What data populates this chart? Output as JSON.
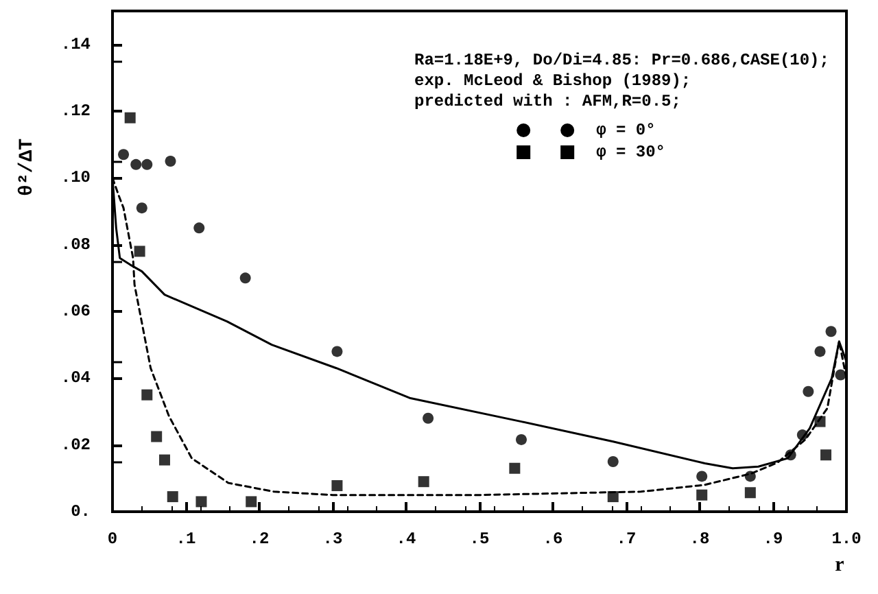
{
  "chart_data": {
    "type": "line",
    "xlabel": "r",
    "ylabel": "θ²/ΔT",
    "annotations": [
      "Ra=1.18E+9, Do/Di=4.85: Pr=0.686,CASE(10);",
      "exp. McLeod & Bishop (1989);",
      "predicted with : AFM,R=0.5;"
    ],
    "xlim": [
      0,
      1
    ],
    "ylim": [
      0,
      0.15
    ],
    "xticks": [
      {
        "value": 0,
        "label": "0"
      },
      {
        "value": 0.1,
        "label": ".1"
      },
      {
        "value": 0.2,
        "label": ".2"
      },
      {
        "value": 0.3,
        "label": ".3"
      },
      {
        "value": 0.4,
        "label": ".4"
      },
      {
        "value": 0.5,
        "label": ".5"
      },
      {
        "value": 0.6,
        "label": ".6"
      },
      {
        "value": 0.7,
        "label": ".7"
      },
      {
        "value": 0.8,
        "label": ".8"
      },
      {
        "value": 0.9,
        "label": ".9"
      },
      {
        "value": 1,
        "label": "1.0"
      }
    ],
    "yticks": [
      {
        "value": 0,
        "label": "0."
      },
      {
        "value": 0.02,
        "label": ".02"
      },
      {
        "value": 0.04,
        "label": ".04"
      },
      {
        "value": 0.06,
        "label": ".06"
      },
      {
        "value": 0.08,
        "label": ".08"
      },
      {
        "value": 0.1,
        "label": ".10"
      },
      {
        "value": 0.12,
        "label": ".12"
      },
      {
        "value": 0.14,
        "label": ".14"
      }
    ],
    "grid": false,
    "legend": "top right",
    "series": [
      {
        "name": "φ = 0°",
        "color": "#000000",
        "line_style": "solid",
        "marker": "none",
        "x": [
          0,
          0.005,
          0.01,
          0.024,
          0.04,
          0.071,
          0.156,
          0.217,
          0.305,
          0.406,
          0.557,
          0.682,
          0.807,
          0.845,
          0.88,
          0.92,
          0.95,
          0.98,
          0.99,
          1
        ],
        "values": [
          0.1,
          0.085,
          0.076,
          0.074,
          0.072,
          0.065,
          0.057,
          0.05,
          0.043,
          0.034,
          0.027,
          0.021,
          0.0145,
          0.013,
          0.0135,
          0.016,
          0.025,
          0.04,
          0.051,
          0.045
        ]
      },
      {
        "type": "scatter",
        "color": "#000000",
        "marker": "circle",
        "x": [
          0.015,
          0.032,
          0.047,
          0.04,
          0.079,
          0.118,
          0.181,
          0.306,
          0.43,
          0.557,
          0.682,
          0.803,
          0.869,
          0.924,
          0.94,
          0.948,
          0.964,
          0.979,
          0.992
        ],
        "values": [
          0.107,
          0.104,
          0.104,
          0.091,
          0.105,
          0.085,
          0.07,
          0.048,
          0.028,
          0.0216,
          0.015,
          0.0106,
          0.0106,
          0.017,
          0.023,
          0.036,
          0.048,
          0.054,
          0.041
        ]
      },
      {
        "name": "φ = 30°",
        "type": "line",
        "color": "#000000",
        "line_style": "dashed",
        "marker": "none",
        "x": [
          0,
          0.008,
          0.015,
          0.028,
          0.03,
          0.052,
          0.077,
          0.108,
          0.158,
          0.22,
          0.3,
          0.5,
          0.72,
          0.806,
          0.87,
          0.906,
          0.944,
          0.974,
          0.99,
          1
        ],
        "values": [
          0.1,
          0.095,
          0.091,
          0.076,
          0.068,
          0.043,
          0.0286,
          0.016,
          0.0086,
          0.006,
          0.005,
          0.005,
          0.006,
          0.008,
          0.0114,
          0.0147,
          0.0216,
          0.031,
          0.051,
          0.04
        ]
      },
      {
        "type": "scatter",
        "color": "#000000",
        "marker": "square",
        "x": [
          0.024,
          0.037,
          0.047,
          0.06,
          0.071,
          0.082,
          0.121,
          0.189,
          0.306,
          0.424,
          0.548,
          0.682,
          0.803,
          0.869,
          0.964,
          0.972
        ],
        "values": [
          0.118,
          0.078,
          0.035,
          0.0225,
          0.0155,
          0.0045,
          0.003,
          0.003,
          0.0078,
          0.009,
          0.013,
          0.0045,
          0.005,
          0.0057,
          0.027,
          0.017
        ]
      }
    ]
  }
}
